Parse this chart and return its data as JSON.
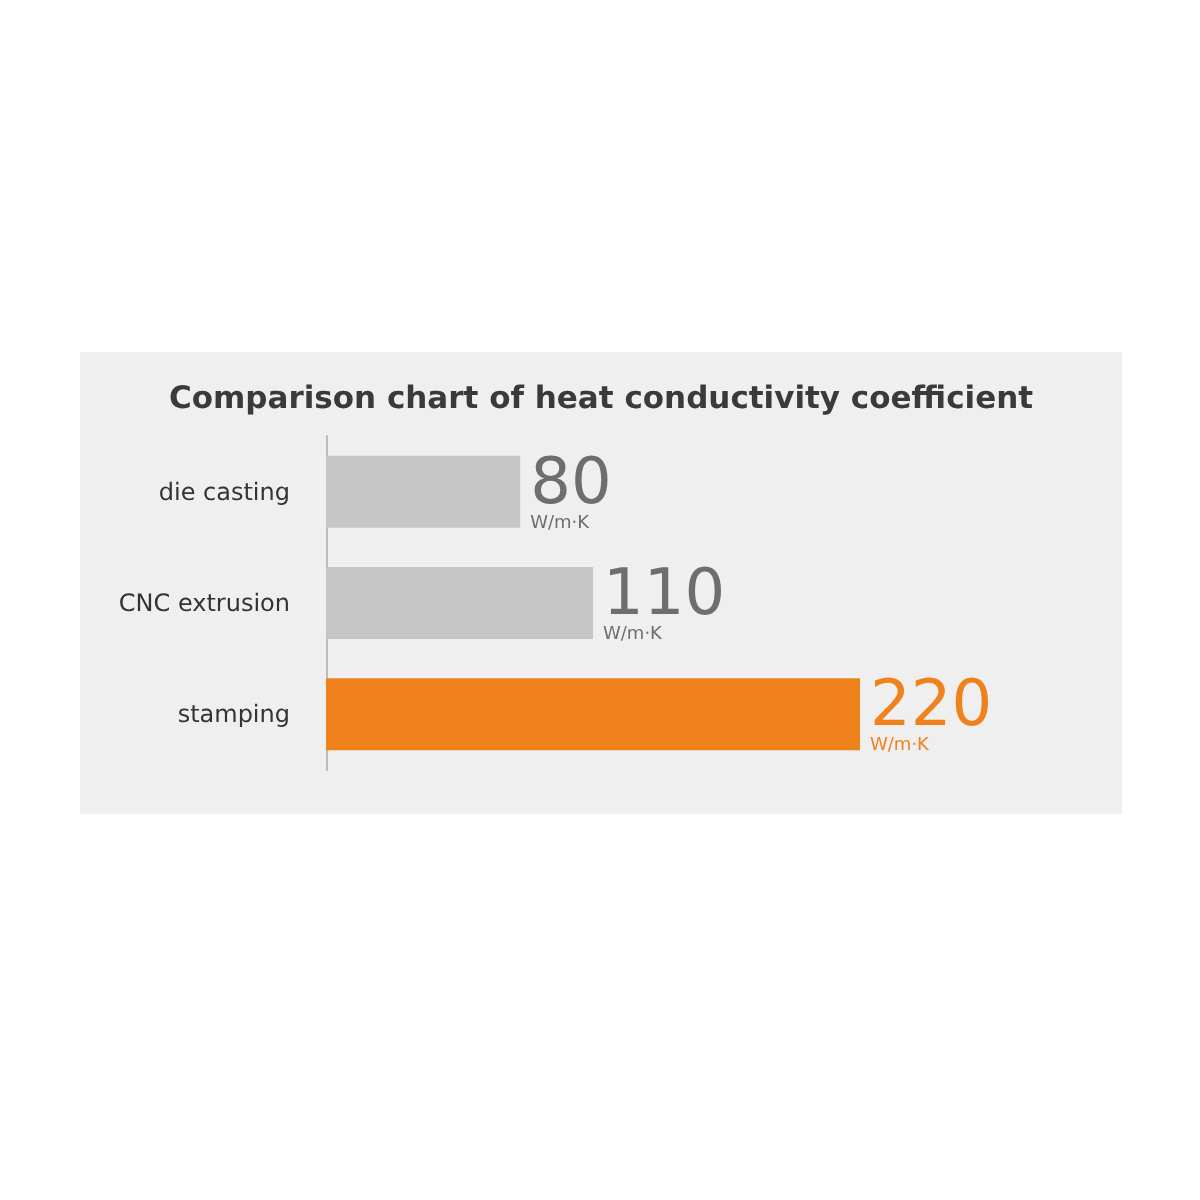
{
  "chart_data": {
    "type": "bar",
    "orientation": "horizontal",
    "title": "Comparison chart of heat conductivity coefficient",
    "categories": [
      "die casting",
      "CNC extrusion",
      "stamping"
    ],
    "values": [
      80,
      110,
      220
    ],
    "colors": [
      "#c6c6c6",
      "#c6c6c6",
      "#f0821e"
    ],
    "value_labels": [
      "80 W/m·K",
      "110 W/m·K",
      "220 W/m·K"
    ],
    "grid": false
  }
}
